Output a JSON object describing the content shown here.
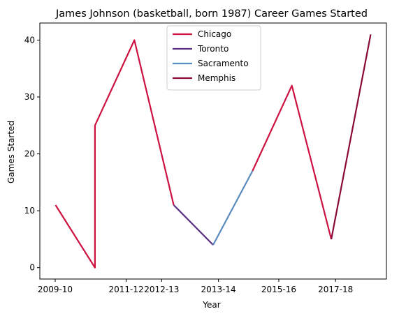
{
  "chart_data": {
    "type": "line",
    "title": "James Johnson (basketball, born 1987) Career Games Started",
    "xlabel": "Year",
    "ylabel": "Games Started",
    "x_tick_labels": [
      "2009-10",
      "2011-12",
      "2012-13",
      "2013-14",
      "2015-16",
      "2017-18"
    ],
    "yticks": [
      0,
      10,
      20,
      30,
      40
    ],
    "ylim": [
      -2,
      43
    ],
    "legend_position": "top-center",
    "grid": false,
    "series": [
      {
        "name": "Chicago",
        "color": "#CE1141",
        "points": [
          {
            "x": "2009-10",
            "y": 11
          },
          {
            "x": "2010-11",
            "y": 0
          },
          {
            "x": "2010-11",
            "y": 25
          },
          {
            "x": "2011-12",
            "y": 40
          },
          {
            "x": "2012-13",
            "y": 11
          }
        ]
      },
      {
        "name": "Toronto",
        "color": "#5A2D81",
        "points": [
          {
            "x": "2012-13",
            "y": 11
          },
          {
            "x": "2013-14",
            "y": 4
          }
        ]
      },
      {
        "name": "Sacramento",
        "color": "#5A8BBF",
        "points": [
          {
            "x": "2013-14",
            "y": 4
          },
          {
            "x": "2014-15",
            "y": 17
          }
        ]
      },
      {
        "name": "Chicago",
        "color": "#CE1141",
        "show_in_legend": false,
        "points": [
          {
            "x": "2014-15",
            "y": 17
          },
          {
            "x": "2015-16",
            "y": 32
          },
          {
            "x": "2016-17",
            "y": 5
          }
        ]
      },
      {
        "name": "Memphis",
        "color": "#8B0A3A",
        "points": [
          {
            "x": "2016-17",
            "y": 5
          },
          {
            "x": "2017-18",
            "y": 41
          }
        ]
      }
    ]
  }
}
